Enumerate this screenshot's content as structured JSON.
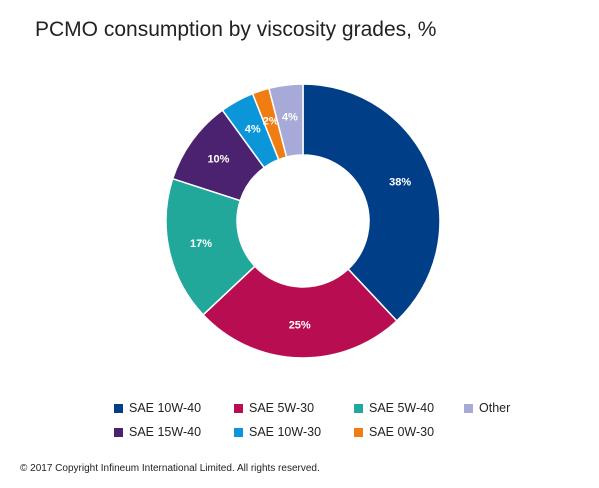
{
  "title": "PCMO consumption by viscosity grades, %",
  "copyright": "© 2017 Copyright Infineum International Limited. All rights reserved.",
  "chart_data": {
    "type": "pie",
    "donut": true,
    "title": "PCMO consumption by viscosity grades, %",
    "unit": "%",
    "legend_position": "bottom",
    "slices": [
      {
        "name": "SAE 10W-40",
        "value": 38,
        "label": "38%",
        "color": "#003f87"
      },
      {
        "name": "SAE 5W-30",
        "value": 25,
        "label": "25%",
        "color": "#b80e51"
      },
      {
        "name": "SAE 5W-40",
        "value": 17,
        "label": "17%",
        "color": "#21a89a"
      },
      {
        "name": "SAE 15W-40",
        "value": 10,
        "label": "10%",
        "color": "#4a2270"
      },
      {
        "name": "SAE 10W-30",
        "value": 4,
        "label": "4%",
        "color": "#0a96d8"
      },
      {
        "name": "SAE 0W-30",
        "value": 2,
        "label": "2%",
        "color": "#f07d12"
      },
      {
        "name": "Other",
        "value": 4,
        "label": "4%",
        "color": "#a7a9d6"
      }
    ]
  },
  "legend": {
    "items": [
      {
        "label": "SAE 10W-40",
        "color": "#003f87"
      },
      {
        "label": "SAE 5W-30",
        "color": "#b80e51"
      },
      {
        "label": "SAE 5W-40",
        "color": "#21a89a"
      },
      {
        "label": "Other",
        "color": "#a7a9d6"
      },
      {
        "label": "SAE 15W-40",
        "color": "#4a2270"
      },
      {
        "label": "SAE 10W-30",
        "color": "#0a96d8"
      },
      {
        "label": "SAE 0W-30",
        "color": "#f07d12"
      }
    ]
  }
}
